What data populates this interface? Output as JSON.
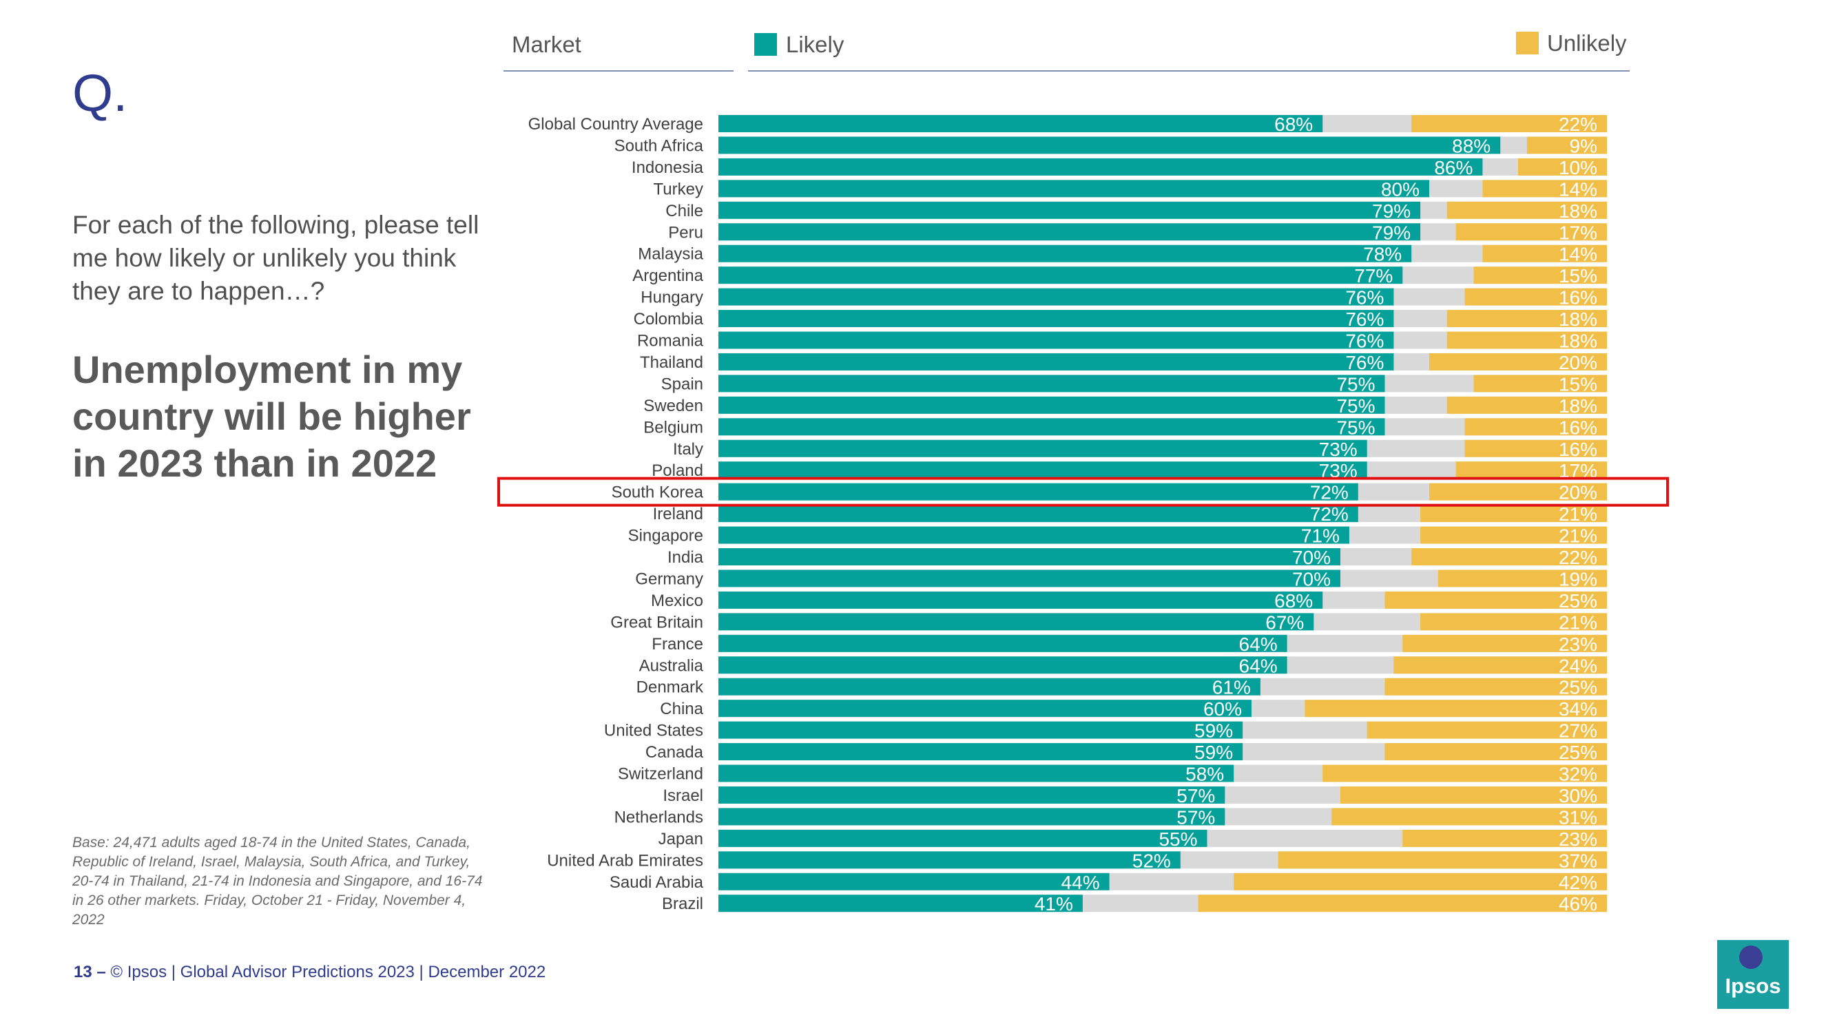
{
  "slide": {
    "q_label": "Q.",
    "prompt": "For each of the following, please tell me how likely or unlikely you think they are to happen…?",
    "statement": "Unemployment in my country will be higher in 2023 than in 2022",
    "base_note": "Base: 24,471 adults aged 18-74 in the United States, Canada, Republic of Ireland, Israel, Malaysia, South Africa, and Turkey, 20-74 in Thailand, 21-74 in Indonesia and Singapore, and 16-74 in 26 other markets. Friday, October 21 -  Friday, November 4, 2022",
    "page_number": "13 –",
    "footer_text": "© Ipsos | Global Advisor Predictions 2023 | December 2022",
    "logo_text": "Ipsos"
  },
  "legend": {
    "market_label": "Market",
    "likely_label": "Likely",
    "unlikely_label": "Unlikely"
  },
  "colors": {
    "likely": "#04a09a",
    "neutral": "#d9d9d9",
    "unlikely": "#f1bf47",
    "highlight": "#e01010",
    "title": "#2f3b8c"
  },
  "chart_data": {
    "type": "bar",
    "orientation": "horizontal",
    "stacked": true,
    "title": "Unemployment in my country will be higher in 2023 than in 2022",
    "xlabel": "",
    "ylabel": "Market",
    "xlim": [
      0,
      100
    ],
    "highlight": "South Korea",
    "categories": [
      "Global Country Average",
      "South Africa",
      "Indonesia",
      "Turkey",
      "Chile",
      "Peru",
      "Malaysia",
      "Argentina",
      "Hungary",
      "Colombia",
      "Romania",
      "Thailand",
      "Spain",
      "Sweden",
      "Belgium",
      "Italy",
      "Poland",
      "South Korea",
      "Ireland",
      "Singapore",
      "India",
      "Germany",
      "Mexico",
      "Great Britain",
      "France",
      "Australia",
      "Denmark",
      "China",
      "United States",
      "Canada",
      "Switzerland",
      "Israel",
      "Netherlands",
      "Japan",
      "United Arab Emirates",
      "Saudi Arabia",
      "Brazil"
    ],
    "series": [
      {
        "name": "Likely",
        "values": [
          68,
          88,
          86,
          80,
          79,
          79,
          78,
          77,
          76,
          76,
          76,
          76,
          75,
          75,
          75,
          73,
          73,
          72,
          72,
          71,
          70,
          70,
          68,
          67,
          64,
          64,
          61,
          60,
          59,
          59,
          58,
          57,
          57,
          55,
          52,
          44,
          41
        ]
      },
      {
        "name": "Unlikely",
        "values": [
          22,
          9,
          10,
          14,
          18,
          17,
          14,
          15,
          16,
          18,
          18,
          20,
          15,
          18,
          16,
          16,
          17,
          20,
          21,
          21,
          22,
          19,
          25,
          21,
          23,
          24,
          25,
          34,
          27,
          25,
          32,
          30,
          31,
          23,
          37,
          42,
          46
        ]
      }
    ]
  }
}
